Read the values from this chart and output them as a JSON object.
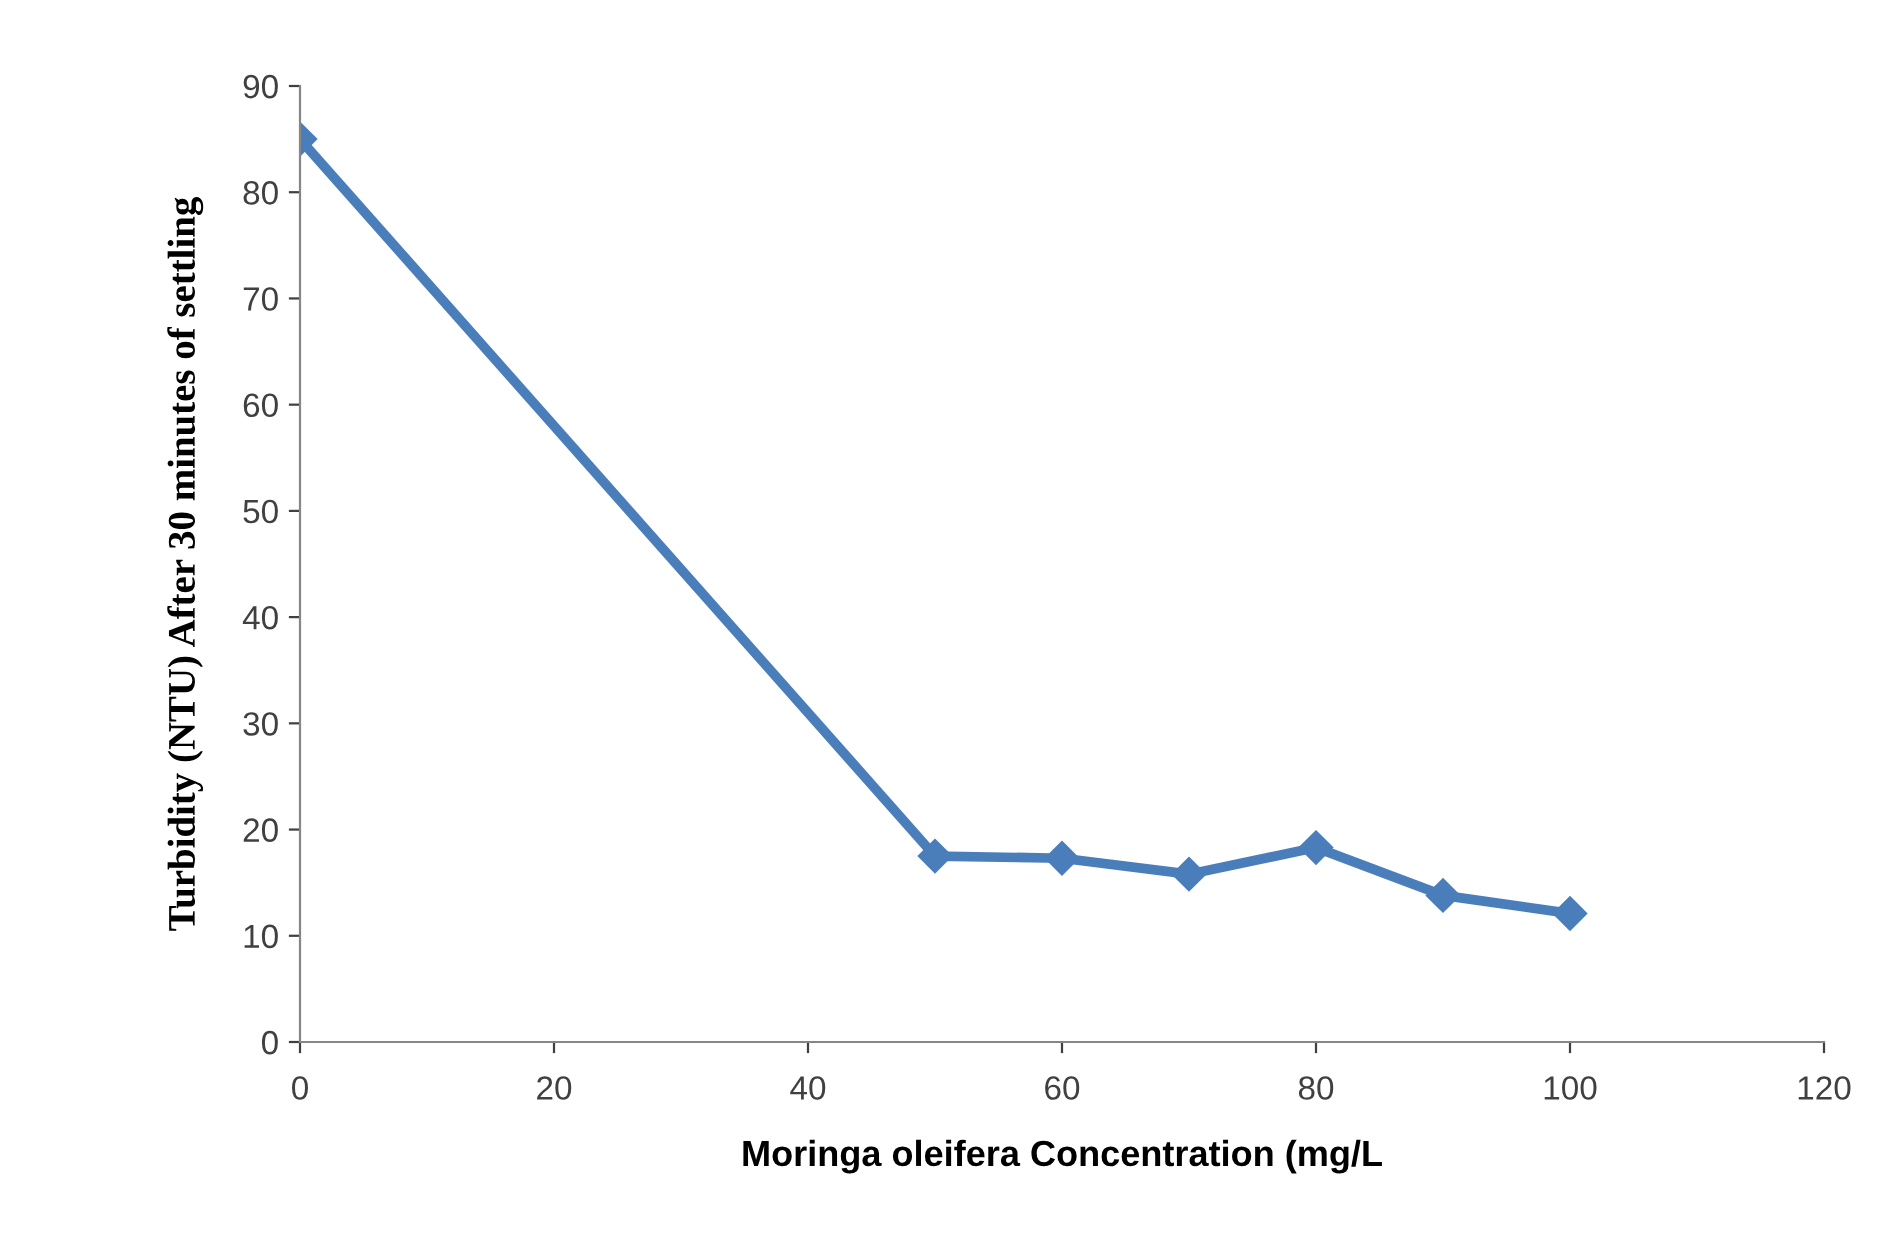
{
  "chart_data": {
    "type": "line",
    "xlabel": "Moringa oleifera Concentration (mg/L",
    "ylabel": "Turbidity (NTU) After 30 minutes of settling",
    "x": [
      0,
      50,
      60,
      70,
      80,
      90,
      100
    ],
    "series": [
      {
        "color": "#4a7ebb",
        "values": [
          85,
          17.5,
          17.3,
          15.8,
          18.3,
          13.8,
          12.1
        ]
      }
    ],
    "xlim": [
      0,
      120
    ],
    "xticks": [
      0,
      20,
      40,
      60,
      80,
      100,
      120
    ],
    "ylim": [
      0,
      90
    ],
    "yticks": [
      0,
      10,
      20,
      30,
      40,
      50,
      60,
      70,
      80,
      90
    ],
    "marker": "diamond",
    "line_style": "solid",
    "grid": false,
    "legend": false
  }
}
